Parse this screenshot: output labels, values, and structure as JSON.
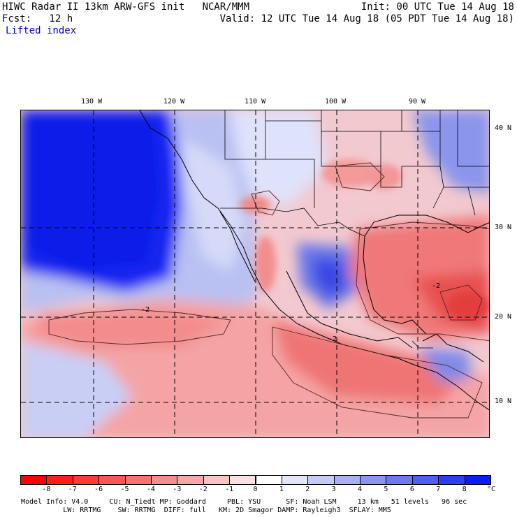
{
  "header": {
    "line1_left": "HIWC Radar II 13km ARW-GFS init   NCAR/MMM",
    "line1_right": "Init: 00 UTC Tue 14 Aug 18",
    "line2_left": "Fcst:   12 h",
    "line2_right": "Valid: 12 UTC Tue 14 Aug 18 (05 PDT Tue 14 Aug 18)",
    "field": "Lifted index"
  },
  "map": {
    "longitude_labels": [
      {
        "text": "130 W",
        "lon": -130
      },
      {
        "text": "120 W",
        "lon": -120
      },
      {
        "text": "110 W",
        "lon": -110
      },
      {
        "text": "100 W",
        "lon": -100
      },
      {
        "text": "90 W",
        "lon": -90
      }
    ],
    "latitude_labels": [
      {
        "text": "40 N",
        "lat": 40
      },
      {
        "text": "30 N",
        "lat": 30
      },
      {
        "text": "20 N",
        "lat": 20
      },
      {
        "text": "10 N",
        "lat": 10
      }
    ],
    "contour_labels": [
      "-2",
      "-2",
      "-2"
    ],
    "colors": {
      "strong_stable": "#1a1aff",
      "stable": "#9fa8ee",
      "neutral": "#f5f5ff",
      "unstable": "#f59a9a",
      "strong_unstable": "#ee4c4c"
    }
  },
  "colorbar": {
    "values": [
      "-8",
      "-7",
      "-6",
      "-5",
      "-4",
      "-3",
      "-2",
      "-1",
      "0",
      "1",
      "2",
      "3",
      "4",
      "5",
      "6",
      "7",
      "8"
    ],
    "unit": "°C",
    "colors": [
      "#ff0000",
      "#ff1c1c",
      "#ff3a3a",
      "#f95757",
      "#f47373",
      "#f48f8f",
      "#f6a8a8",
      "#f8c3c3",
      "#fbe1e1",
      "#ffffff",
      "#e3e6f9",
      "#c6cbf5",
      "#a8b0f2",
      "#8b94f0",
      "#6e79ee",
      "#505ff0",
      "#2d3df1",
      "#0a1ef5"
    ]
  },
  "footer": {
    "line1": "Model Info: V4.0     CU: N_Tiedt MP: Goddard     PBL: YSU      SF: Noah LSM     13 km   51 levels   96 sec",
    "line2": "          LW: RRTMG    SW: RRTMG  DIFF: full   KM: 2D Smagor DAMP: Rayleigh3  SFLAY: MM5"
  }
}
